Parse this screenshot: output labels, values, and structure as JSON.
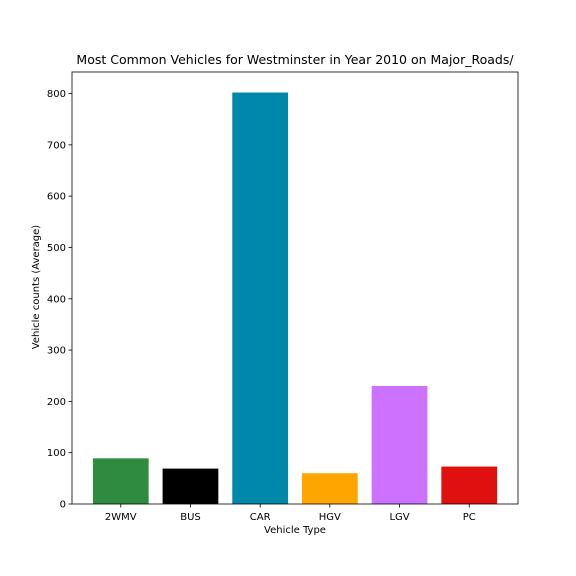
{
  "chart_data": {
    "type": "bar",
    "title": "Most Common Vehicles for Westminster in Year 2010 on Major_Roads/",
    "xlabel": "Vehicle Type",
    "ylabel": "Vehicle counts (Average)",
    "categories": [
      "2WMV",
      "BUS",
      "CAR",
      "HGV",
      "LGV",
      "PC"
    ],
    "values": [
      89,
      69,
      802,
      60,
      230,
      73
    ],
    "colors": [
      "#2e8b40",
      "#000000",
      "#0088ab",
      "#ffa500",
      "#cc72ff",
      "#e01010"
    ],
    "ylim": [
      0,
      842
    ],
    "yticks": [
      0,
      100,
      200,
      300,
      400,
      500,
      600,
      700,
      800
    ],
    "grid": false,
    "legend": "none"
  }
}
